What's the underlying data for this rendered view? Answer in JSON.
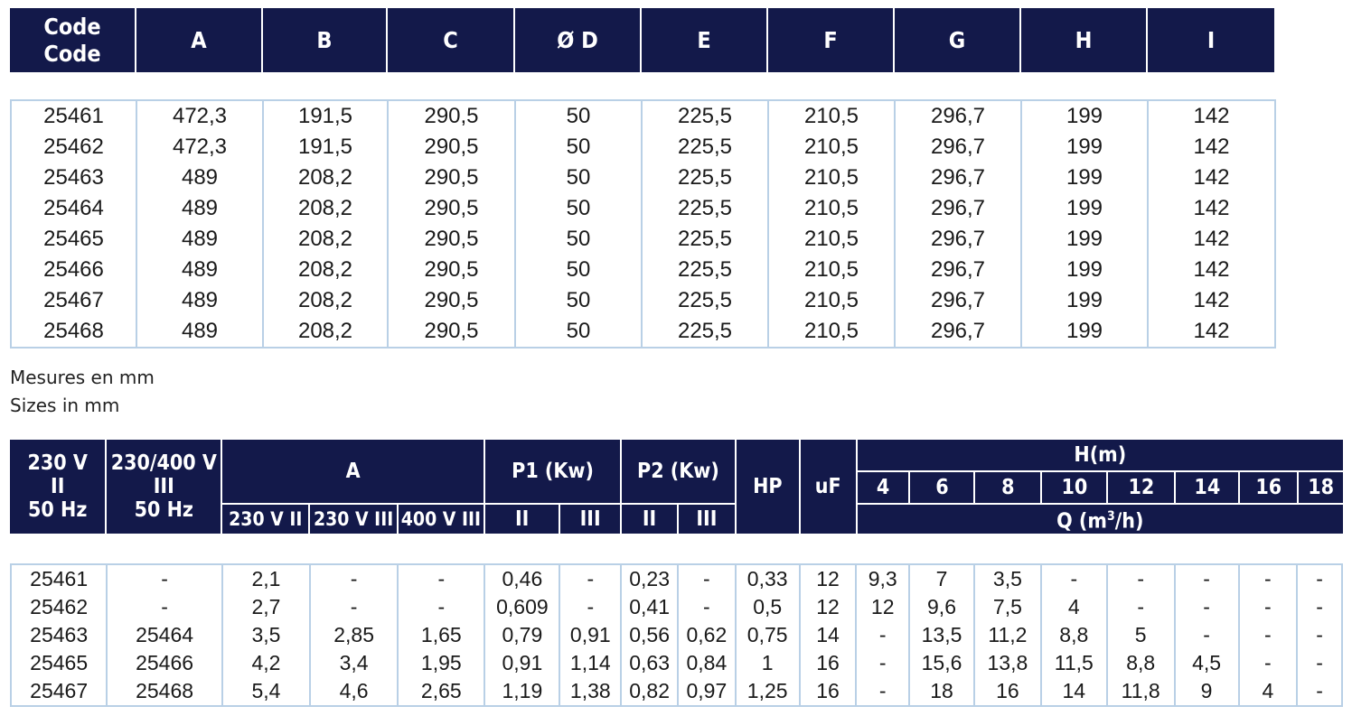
{
  "dimensions": {
    "headers": [
      "Code\nCode",
      "A",
      "B",
      "C",
      "Ø D",
      "E",
      "F",
      "G",
      "H",
      "I"
    ],
    "rows": [
      [
        "25461",
        "472,3",
        "191,5",
        "290,5",
        "50",
        "225,5",
        "210,5",
        "296,7",
        "199",
        "142"
      ],
      [
        "25462",
        "472,3",
        "191,5",
        "290,5",
        "50",
        "225,5",
        "210,5",
        "296,7",
        "199",
        "142"
      ],
      [
        "25463",
        "489",
        "208,2",
        "290,5",
        "50",
        "225,5",
        "210,5",
        "296,7",
        "199",
        "142"
      ],
      [
        "25464",
        "489",
        "208,2",
        "290,5",
        "50",
        "225,5",
        "210,5",
        "296,7",
        "199",
        "142"
      ],
      [
        "25465",
        "489",
        "208,2",
        "290,5",
        "50",
        "225,5",
        "210,5",
        "296,7",
        "199",
        "142"
      ],
      [
        "25466",
        "489",
        "208,2",
        "290,5",
        "50",
        "225,5",
        "210,5",
        "296,7",
        "199",
        "142"
      ],
      [
        "25467",
        "489",
        "208,2",
        "290,5",
        "50",
        "225,5",
        "210,5",
        "296,7",
        "199",
        "142"
      ],
      [
        "25468",
        "489",
        "208,2",
        "290,5",
        "50",
        "225,5",
        "210,5",
        "296,7",
        "199",
        "142"
      ]
    ]
  },
  "notes": {
    "fr": "Mesures en mm",
    "en": "Sizes in mm"
  },
  "electrical": {
    "header": {
      "col_230": "230 V\nII\n50 Hz",
      "col_230_400": "230/400 V\nIII\n50 Hz",
      "amps": "A",
      "amps_sub": [
        "230 V II",
        "230 V III",
        "400 V III"
      ],
      "p1": "P1 (Kw)",
      "p2": "P2 (Kw)",
      "phase_sub": [
        "II",
        "III"
      ],
      "hp": "HP",
      "uf": "uF",
      "head": "H(m)",
      "head_values": [
        "4",
        "6",
        "8",
        "10",
        "12",
        "14",
        "16",
        "18"
      ],
      "flow_prefix": "Q (m",
      "flow_exp": "3",
      "flow_suffix": "/h)"
    },
    "rows": [
      [
        "25461",
        "-",
        "2,1",
        "-",
        "-",
        "0,46",
        "-",
        "0,23",
        "-",
        "0,33",
        "12",
        "9,3",
        "7",
        "3,5",
        "-",
        "-",
        "-",
        "-",
        "-"
      ],
      [
        "25462",
        "-",
        "2,7",
        "-",
        "-",
        "0,609",
        "-",
        "0,41",
        "-",
        "0,5",
        "12",
        "12",
        "9,6",
        "7,5",
        "4",
        "-",
        "-",
        "-",
        "-"
      ],
      [
        "25463",
        "25464",
        "3,5",
        "2,85",
        "1,65",
        "0,79",
        "0,91",
        "0,56",
        "0,62",
        "0,75",
        "14",
        "-",
        "13,5",
        "11,2",
        "8,8",
        "5",
        "-",
        "-",
        "-"
      ],
      [
        "25465",
        "25466",
        "4,2",
        "3,4",
        "1,95",
        "0,91",
        "1,14",
        "0,63",
        "0,84",
        "1",
        "16",
        "-",
        "15,6",
        "13,8",
        "11,5",
        "8,8",
        "4,5",
        "-",
        "-"
      ],
      [
        "25467",
        "25468",
        "5,4",
        "4,6",
        "2,65",
        "1,19",
        "1,38",
        "0,82",
        "0,97",
        "1,25",
        "16",
        "-",
        "18",
        "16",
        "14",
        "11,8",
        "9",
        "4",
        "-"
      ]
    ]
  },
  "colors": {
    "header_bg": "#13194a",
    "grid_line": "#b9d0e6"
  }
}
